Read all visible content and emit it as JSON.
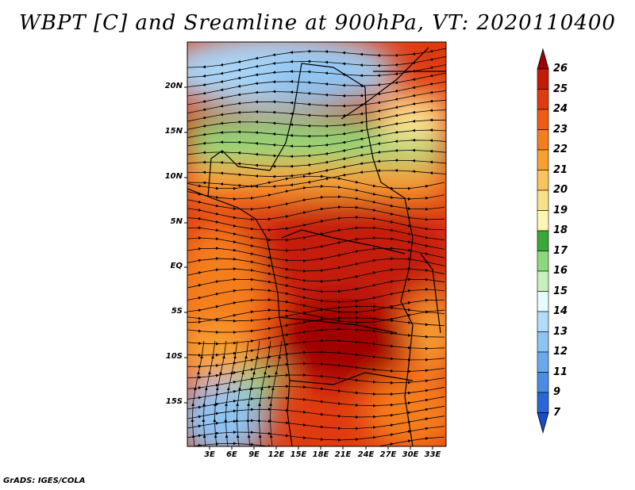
{
  "title": "WBPT [C] and Sreamline at 900hPa, VT: 2020110400",
  "credit": "GrADS: IGES/COLA",
  "map": {
    "lat_labels": [
      "20N",
      "15N",
      "10N",
      "5N",
      "EQ",
      "5S",
      "10S",
      "15S"
    ],
    "lon_labels": [
      "3E",
      "6E",
      "9E",
      "12E",
      "15E",
      "18E",
      "21E",
      "24E",
      "27E",
      "30E",
      "33E"
    ]
  },
  "colorbar": {
    "levels": [
      "26",
      "25",
      "24",
      "23",
      "22",
      "21",
      "20",
      "19",
      "18",
      "17",
      "16",
      "15",
      "14",
      "13",
      "12",
      "11",
      "9",
      "7"
    ],
    "colors": [
      "#a00000",
      "#c41a08",
      "#e03b10",
      "#f05a14",
      "#f57e1c",
      "#f7a030",
      "#fac35c",
      "#fbe08c",
      "#fff6b6",
      "#3aa83a",
      "#8cd87c",
      "#c8f0bc",
      "#e6fbfb",
      "#b4dcf8",
      "#8ec4f2",
      "#6aa8ec",
      "#4a8ce4",
      "#2a66d6",
      "#1a4cc8"
    ]
  }
}
